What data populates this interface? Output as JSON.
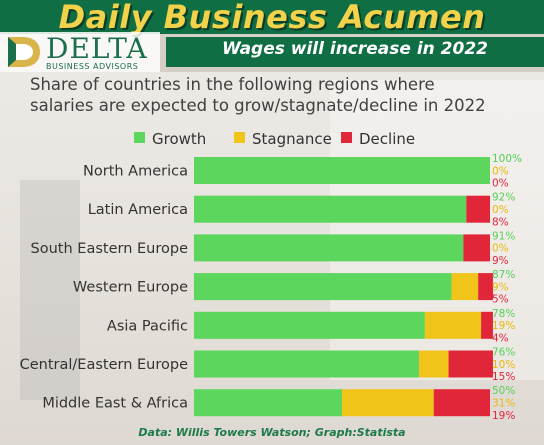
{
  "header": {
    "headline": "Daily Business Acumen",
    "subheadline": "Wages will increase in 2022"
  },
  "logo": {
    "name": "DELTA",
    "tagline": "BUSINESS ADVISORS"
  },
  "source": "Data: Willis Towers Watson; Graph:Statista",
  "colors": {
    "growth": "#5cd65c",
    "stagnance": "#f0c419",
    "decline": "#e2263a",
    "brand_green": "#0f6e43",
    "headline_yellow": "#f2d24a"
  },
  "chart_data": {
    "type": "bar",
    "orientation": "horizontal",
    "stacked": true,
    "title": "Share of countries in the following regions where salaries are expected to grow/stagnate/decline in 2022",
    "title_lines": [
      "Share of countries in the following regions where",
      "salaries are expected to grow/stagnate/decline in 2022"
    ],
    "legend_position": "top",
    "xlim": [
      0,
      100
    ],
    "grid": false,
    "categories": [
      "North America",
      "Latin America",
      "South Eastern Europe",
      "Western Europe",
      "Asia Pacific",
      "Central/Eastern Europe",
      "Middle East & Africa"
    ],
    "series": [
      {
        "name": "Growth",
        "values": [
          100,
          92,
          91,
          87,
          78,
          76,
          50
        ]
      },
      {
        "name": "Stagnance",
        "values": [
          0,
          0,
          0,
          9,
          19,
          10,
          31
        ]
      },
      {
        "name": "Decline",
        "values": [
          0,
          8,
          9,
          5,
          4,
          15,
          19
        ]
      }
    ],
    "value_labels": [
      [
        "100%",
        "0%",
        "0%"
      ],
      [
        "92%",
        "0%",
        "8%"
      ],
      [
        "91%",
        "0%",
        "9%"
      ],
      [
        "87%",
        "9%",
        "5%"
      ],
      [
        "78%",
        "19%",
        "4%"
      ],
      [
        "76%",
        "10%",
        "15%"
      ],
      [
        "50%",
        "31%",
        "19%"
      ]
    ]
  }
}
